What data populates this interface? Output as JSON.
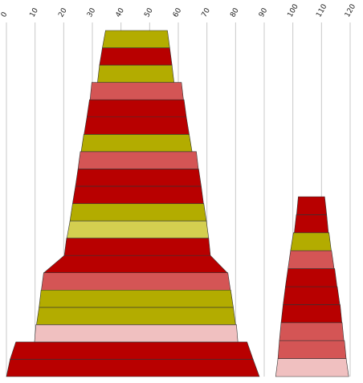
{
  "chart_data": {
    "type": "stacked-trapezoid",
    "x_axis": {
      "ticks": [
        "0",
        "10",
        "20",
        "30",
        "40",
        "50",
        "60",
        "70",
        "80",
        "90",
        "100",
        "110",
        "120"
      ],
      "range": [
        0,
        120
      ],
      "position": "top",
      "grid": true
    },
    "colors": {
      "dark_red": "#b80000",
      "light_red": "#d45555",
      "olive": "#b3ac00",
      "yellow": "#d4cf50",
      "pink": "#f0c0c0"
    },
    "stacks": [
      {
        "layers": [
          {
            "color": "dark_red",
            "left": [
              0,
              1.3
            ],
            "right": [
              86.1,
              88.3
            ]
          },
          {
            "color": "dark_red",
            "left": [
              1.3,
              3.3
            ],
            "right": [
              84.0,
              86.1
            ]
          },
          {
            "color": "pink",
            "left": [
              9.8,
              10.3
            ],
            "right": [
              80.3,
              80.8
            ]
          },
          {
            "color": "olive",
            "left": [
              10.5,
              11.4
            ],
            "right": [
              79.2,
              80.0
            ]
          },
          {
            "color": "olive",
            "left": [
              11.4,
              12.1
            ],
            "right": [
              78.3,
              79.2
            ]
          },
          {
            "color": "light_red",
            "left": [
              12.2,
              13.0
            ],
            "right": [
              77.3,
              78.2
            ]
          },
          {
            "color": "dark_red",
            "left": [
              13.1,
              20.2
            ],
            "right": [
              71.2,
              77.1
            ]
          },
          {
            "color": "dark_red",
            "left": [
              20.2,
              21.0
            ],
            "right": [
              70.6,
              71.2
            ]
          },
          {
            "color": "yellow",
            "left": [
              21.1,
              22.2
            ],
            "right": [
              69.8,
              70.6
            ]
          },
          {
            "color": "olive",
            "left": [
              22.2,
              23.1
            ],
            "right": [
              68.9,
              69.8
            ]
          },
          {
            "color": "dark_red",
            "left": [
              23.1,
              24.1
            ],
            "right": [
              68.0,
              68.8
            ]
          },
          {
            "color": "dark_red",
            "left": [
              24.1,
              25.0
            ],
            "right": [
              67.1,
              68.0
            ]
          },
          {
            "color": "light_red",
            "left": [
              25.0,
              25.8
            ],
            "right": [
              66.3,
              67.0
            ]
          },
          {
            "color": "olive",
            "left": [
              26.1,
              27.0
            ],
            "right": [
              63.8,
              64.8
            ]
          },
          {
            "color": "dark_red",
            "left": [
              27.1,
              28.1
            ],
            "right": [
              62.8,
              63.8
            ]
          },
          {
            "color": "dark_red",
            "left": [
              28.1,
              29.0
            ],
            "right": [
              62.0,
              62.8
            ]
          },
          {
            "color": "light_red",
            "left": [
              29.2,
              29.8
            ],
            "right": [
              61.1,
              61.8
            ]
          },
          {
            "color": "olive",
            "left": [
              31.8,
              32.5
            ],
            "right": [
              57.8,
              58.5
            ]
          },
          {
            "color": "dark_red",
            "left": [
              32.5,
              33.5
            ],
            "right": [
              57.0,
              57.8
            ]
          },
          {
            "color": "olive",
            "left": [
              33.5,
              34.6
            ],
            "right": [
              56.2,
              57.0
            ]
          }
        ]
      },
      {
        "layers": [
          {
            "color": "pink",
            "left": [
              94.0,
              94.8
            ],
            "right": [
              118.6,
              119.5
            ]
          },
          {
            "color": "light_red",
            "left": [
              94.8,
              95.3
            ],
            "right": [
              118.0,
              118.6
            ]
          },
          {
            "color": "light_red",
            "left": [
              95.3,
              95.9
            ],
            "right": [
              117.2,
              117.8
            ]
          },
          {
            "color": "dark_red",
            "left": [
              95.9,
              96.6
            ],
            "right": [
              116.5,
              117.1
            ]
          },
          {
            "color": "dark_red",
            "left": [
              96.6,
              97.4
            ],
            "right": [
              115.5,
              116.4
            ]
          },
          {
            "color": "dark_red",
            "left": [
              97.4,
              98.3
            ],
            "right": [
              114.6,
              115.4
            ]
          },
          {
            "color": "light_red",
            "left": [
              98.3,
              99.2
            ],
            "right": [
              113.5,
              114.4
            ]
          },
          {
            "color": "olive",
            "left": [
              99.2,
              100.2
            ],
            "right": [
              112.6,
              113.4
            ]
          },
          {
            "color": "dark_red",
            "left": [
              100.5,
              101.2
            ],
            "right": [
              111.8,
              112.4
            ]
          },
          {
            "color": "dark_red",
            "left": [
              101.3,
              101.9
            ],
            "right": [
              111.1,
              111.8
            ]
          }
        ]
      }
    ]
  }
}
